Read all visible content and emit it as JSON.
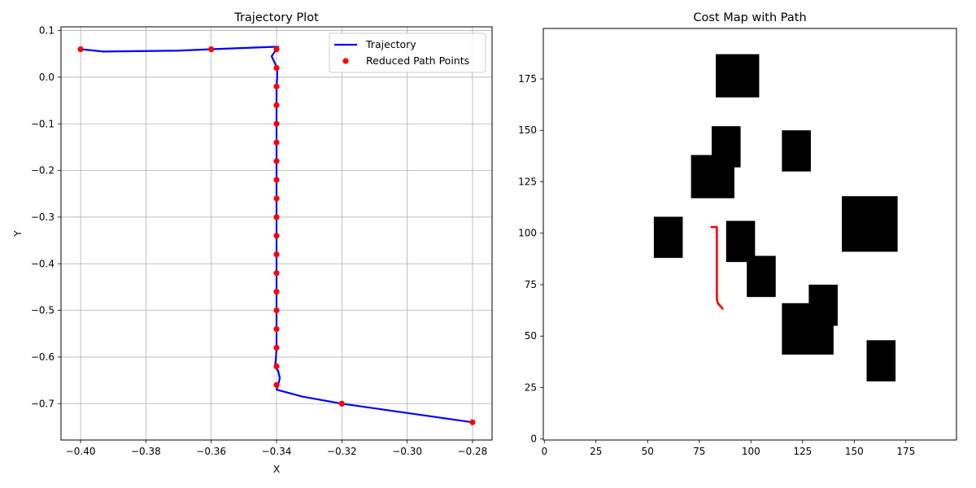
{
  "chart_data": [
    {
      "type": "line",
      "title": "Trajectory Plot",
      "xlabel": "X",
      "ylabel": "Y",
      "xlim": [
        -0.406,
        -0.274
      ],
      "ylim": [
        -0.778,
        0.108
      ],
      "grid": true,
      "legend_position": "top-right",
      "xticks": [
        -0.4,
        -0.38,
        -0.36,
        -0.34,
        -0.32,
        -0.3,
        -0.28
      ],
      "xtick_labels": [
        "−0.40",
        "−0.38",
        "−0.36",
        "−0.34",
        "−0.32",
        "−0.30",
        "−0.28"
      ],
      "yticks": [
        0.1,
        0.0,
        -0.1,
        -0.2,
        -0.3,
        -0.4,
        -0.5,
        -0.6,
        -0.7
      ],
      "ytick_labels": [
        "0.1",
        "0.0",
        "−0.1",
        "−0.2",
        "−0.3",
        "−0.4",
        "−0.5",
        "−0.6",
        "−0.7"
      ],
      "series": [
        {
          "name": "Trajectory",
          "kind": "line",
          "color": "#0000ff",
          "points": [
            [
              -0.4,
              0.06
            ],
            [
              -0.393,
              0.055
            ],
            [
              -0.37,
              0.057
            ],
            [
              -0.36,
              0.06
            ],
            [
              -0.341,
              0.065
            ],
            [
              -0.3395,
              0.065
            ],
            [
              -0.3405,
              0.055
            ],
            [
              -0.3415,
              0.045
            ],
            [
              -0.3405,
              0.03
            ],
            [
              -0.3398,
              0.018
            ],
            [
              -0.3398,
              0.0
            ],
            [
              -0.34,
              -0.02
            ],
            [
              -0.34,
              -0.06
            ],
            [
              -0.34,
              -0.1
            ],
            [
              -0.34,
              -0.14
            ],
            [
              -0.34,
              -0.18
            ],
            [
              -0.34,
              -0.22
            ],
            [
              -0.34,
              -0.26
            ],
            [
              -0.34,
              -0.3
            ],
            [
              -0.34,
              -0.34
            ],
            [
              -0.34,
              -0.38
            ],
            [
              -0.34,
              -0.42
            ],
            [
              -0.34,
              -0.46
            ],
            [
              -0.34,
              -0.5
            ],
            [
              -0.34,
              -0.54
            ],
            [
              -0.34,
              -0.58
            ],
            [
              -0.3402,
              -0.605
            ],
            [
              -0.3405,
              -0.62
            ],
            [
              -0.3395,
              -0.63
            ],
            [
              -0.339,
              -0.645
            ],
            [
              -0.3395,
              -0.66
            ],
            [
              -0.34,
              -0.67
            ],
            [
              -0.332,
              -0.685
            ],
            [
              -0.32,
              -0.7
            ],
            [
              -0.28,
              -0.74
            ]
          ]
        },
        {
          "name": "Reduced Path Points",
          "kind": "scatter",
          "color": "#ff0000",
          "points": [
            [
              -0.4,
              0.06
            ],
            [
              -0.36,
              0.06
            ],
            [
              -0.34,
              0.06
            ],
            [
              -0.34,
              0.02
            ],
            [
              -0.34,
              -0.02
            ],
            [
              -0.34,
              -0.06
            ],
            [
              -0.34,
              -0.1
            ],
            [
              -0.34,
              -0.14
            ],
            [
              -0.34,
              -0.18
            ],
            [
              -0.34,
              -0.22
            ],
            [
              -0.34,
              -0.26
            ],
            [
              -0.34,
              -0.3
            ],
            [
              -0.34,
              -0.34
            ],
            [
              -0.34,
              -0.38
            ],
            [
              -0.34,
              -0.42
            ],
            [
              -0.34,
              -0.46
            ],
            [
              -0.34,
              -0.5
            ],
            [
              -0.34,
              -0.54
            ],
            [
              -0.34,
              -0.58
            ],
            [
              -0.34,
              -0.62
            ],
            [
              -0.34,
              -0.66
            ],
            [
              -0.32,
              -0.7
            ],
            [
              -0.28,
              -0.74
            ]
          ]
        }
      ]
    },
    {
      "type": "heatmap",
      "title": "Cost Map with Path",
      "xlim": [
        -0.5,
        199.5
      ],
      "ylim": [
        -0.5,
        199.5
      ],
      "xticks": [
        0,
        25,
        50,
        75,
        100,
        125,
        150,
        175
      ],
      "xtick_labels": [
        "0",
        "25",
        "50",
        "75",
        "100",
        "125",
        "150",
        "175"
      ],
      "yticks": [
        0,
        25,
        50,
        75,
        100,
        125,
        150,
        175
      ],
      "ytick_labels": [
        "0",
        "25",
        "50",
        "75",
        "100",
        "125",
        "150",
        "175"
      ],
      "obstacle_color": "#000000",
      "free_color": "#ffffff",
      "obstacles": [
        {
          "x0": 83,
          "x1": 104,
          "y0": 166,
          "y1": 187
        },
        {
          "x0": 81,
          "x1": 95,
          "y0": 132,
          "y1": 152
        },
        {
          "x0": 71,
          "x1": 92,
          "y0": 117,
          "y1": 138
        },
        {
          "x0": 115,
          "x1": 129,
          "y0": 130,
          "y1": 150
        },
        {
          "x0": 144,
          "x1": 171,
          "y0": 91,
          "y1": 118
        },
        {
          "x0": 53,
          "x1": 67,
          "y0": 88,
          "y1": 108
        },
        {
          "x0": 88,
          "x1": 102,
          "y0": 86,
          "y1": 106
        },
        {
          "x0": 98,
          "x1": 112,
          "y0": 69,
          "y1": 89
        },
        {
          "x0": 128,
          "x1": 142,
          "y0": 55,
          "y1": 75
        },
        {
          "x0": 115,
          "x1": 140,
          "y0": 41,
          "y1": 66
        },
        {
          "x0": 156,
          "x1": 170,
          "y0": 28,
          "y1": 48
        }
      ],
      "path": {
        "color": "#ff0000",
        "points": [
          [
            80.5,
            103
          ],
          [
            83.5,
            103
          ],
          [
            83.5,
            68
          ],
          [
            84.0,
            66
          ],
          [
            86.5,
            63
          ]
        ]
      }
    }
  ]
}
